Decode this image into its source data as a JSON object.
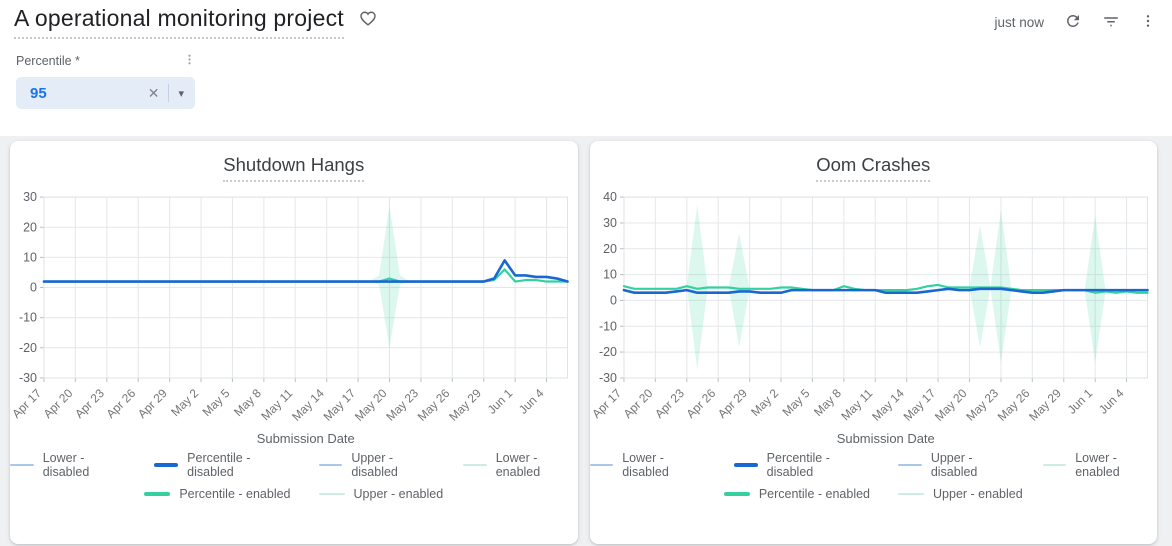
{
  "header": {
    "title": "A operational monitoring project",
    "updated": "just now"
  },
  "icons": {
    "heart": "heart-outline",
    "refresh": "refresh-arrow",
    "filter": "filter-list",
    "kebab_glyph": "⋮",
    "close_glyph": "✕",
    "caret_glyph": "▾"
  },
  "controls": {
    "percentile": {
      "label": "Percentile *",
      "value": "95"
    }
  },
  "chart_data": [
    {
      "type": "line",
      "title": "Shutdown Hangs",
      "xlabel": "Submission Date",
      "ylim": [
        -30,
        30
      ],
      "ytick_step": 10,
      "xtick_step": 3,
      "grid": true,
      "legend_position": "bottom",
      "xticks": [
        "Apr 17",
        "Apr 20",
        "Apr 23",
        "Apr 26",
        "Apr 29",
        "May 2",
        "May 5",
        "May 8",
        "May 11",
        "May 14",
        "May 17",
        "May 20",
        "May 23",
        "May 26",
        "May 29",
        "Jun 1",
        "Jun 4"
      ],
      "x": [
        "Apr 17",
        "Apr 18",
        "Apr 19",
        "Apr 20",
        "Apr 21",
        "Apr 22",
        "Apr 23",
        "Apr 24",
        "Apr 25",
        "Apr 26",
        "Apr 27",
        "Apr 28",
        "Apr 29",
        "Apr 30",
        "May 1",
        "May 2",
        "May 3",
        "May 4",
        "May 5",
        "May 6",
        "May 7",
        "May 8",
        "May 9",
        "May 10",
        "May 11",
        "May 12",
        "May 13",
        "May 14",
        "May 15",
        "May 16",
        "May 17",
        "May 18",
        "May 19",
        "May 20",
        "May 21",
        "May 22",
        "May 23",
        "May 24",
        "May 25",
        "May 26",
        "May 27",
        "May 28",
        "May 29",
        "May 30",
        "May 31",
        "Jun 1",
        "Jun 2",
        "Jun 3",
        "Jun 4",
        "Jun 5",
        "Jun 6"
      ],
      "bands": [
        {
          "name": "Lower/Upper - enabled",
          "fill": "rgba(53,208,160,0.18)",
          "lower": [
            2,
            2,
            2,
            2,
            2,
            2,
            2,
            2,
            2,
            2,
            2,
            2,
            2,
            2,
            2,
            2,
            2,
            2,
            2,
            2,
            2,
            2,
            2,
            2,
            2,
            2,
            2,
            2,
            2,
            2,
            2,
            2,
            1,
            -20,
            1,
            2,
            2,
            2,
            2,
            2,
            2,
            2,
            2,
            2.5,
            6,
            2,
            2.5,
            2.5,
            2,
            2,
            2
          ],
          "upper": [
            2,
            2,
            2,
            2,
            2,
            2,
            2,
            2,
            2,
            2,
            2,
            2,
            2,
            2,
            2,
            2,
            2,
            2,
            2,
            2,
            2,
            2,
            2,
            2,
            2,
            2,
            2,
            2,
            2,
            2,
            2,
            2,
            4,
            27,
            4,
            2,
            2,
            2,
            2,
            2,
            2,
            2,
            2,
            2.5,
            6,
            2,
            2.5,
            2.5,
            2,
            2,
            2
          ]
        }
      ],
      "series": [
        {
          "name": "Percentile - enabled",
          "color": "#35d0a0",
          "width": 2.2,
          "values": [
            2,
            2,
            2,
            2,
            2,
            2,
            2,
            2,
            2,
            2,
            2,
            2,
            2,
            2,
            2,
            2,
            2,
            2,
            2,
            2,
            2,
            2,
            2,
            2,
            2,
            2,
            2,
            2,
            2,
            2,
            2,
            2,
            2,
            3,
            2,
            2,
            2,
            2,
            2,
            2,
            2,
            2,
            2,
            2.5,
            6,
            2,
            2.5,
            2.5,
            2,
            2,
            2
          ]
        },
        {
          "name": "Percentile - disabled",
          "color": "#1967d2",
          "width": 2.6,
          "values": [
            2,
            2,
            2,
            2,
            2,
            2,
            2,
            2,
            2,
            2,
            2,
            2,
            2,
            2,
            2,
            2,
            2,
            2,
            2,
            2,
            2,
            2,
            2,
            2,
            2,
            2,
            2,
            2,
            2,
            2,
            2,
            2,
            2,
            2,
            2,
            2,
            2,
            2,
            2,
            2,
            2,
            2,
            2,
            3,
            9,
            4,
            4,
            3.5,
            3.5,
            3,
            2
          ]
        }
      ],
      "legend": [
        [
          {
            "text": "Lower  - disabled",
            "color": "#a9c7e8",
            "bold": false
          },
          {
            "text": "Percentile  - disabled",
            "color": "#1967d2",
            "bold": true
          },
          {
            "text": "Upper  - disabled",
            "color": "#a9c7e8",
            "bold": false
          },
          {
            "text": "Lower  - enabled",
            "color": "#cdeedf",
            "bold": false
          }
        ],
        [
          {
            "text": "Percentile  - enabled",
            "color": "#35d0a0",
            "bold": true
          },
          {
            "text": "Upper  - enabled",
            "color": "#cdeedf",
            "bold": false
          }
        ]
      ]
    },
    {
      "type": "line",
      "title": "Oom Crashes",
      "xlabel": "Submission Date",
      "ylim": [
        -30,
        40
      ],
      "ytick_step": 10,
      "xtick_step": 3,
      "grid": true,
      "legend_position": "bottom",
      "xticks": [
        "Apr 17",
        "Apr 20",
        "Apr 23",
        "Apr 26",
        "Apr 29",
        "May 2",
        "May 5",
        "May 8",
        "May 11",
        "May 14",
        "May 17",
        "May 20",
        "May 23",
        "May 26",
        "May 29",
        "Jun 1",
        "Jun 4"
      ],
      "x": [
        "Apr 17",
        "Apr 18",
        "Apr 19",
        "Apr 20",
        "Apr 21",
        "Apr 22",
        "Apr 23",
        "Apr 24",
        "Apr 25",
        "Apr 26",
        "Apr 27",
        "Apr 28",
        "Apr 29",
        "Apr 30",
        "May 1",
        "May 2",
        "May 3",
        "May 4",
        "May 5",
        "May 6",
        "May 7",
        "May 8",
        "May 9",
        "May 10",
        "May 11",
        "May 12",
        "May 13",
        "May 14",
        "May 15",
        "May 16",
        "May 17",
        "May 18",
        "May 19",
        "May 20",
        "May 21",
        "May 22",
        "May 23",
        "May 24",
        "May 25",
        "May 26",
        "May 27",
        "May 28",
        "May 29",
        "May 30",
        "May 31",
        "Jun 1",
        "Jun 2",
        "Jun 3",
        "Jun 4",
        "Jun 5",
        "Jun 6"
      ],
      "bands": [
        {
          "name": "Lower/Upper - enabled",
          "fill": "rgba(53,208,160,0.18)",
          "lower": [
            5.5,
            4.5,
            4.5,
            4.5,
            4.5,
            4.5,
            5.5,
            -27,
            5,
            5,
            5,
            -18,
            4.5,
            4.5,
            4.5,
            5,
            5,
            4.5,
            4,
            4,
            4,
            5.5,
            4.5,
            4,
            4,
            4,
            4,
            4,
            4.5,
            5.5,
            6,
            5,
            5,
            5,
            -18,
            5,
            -24,
            4.5,
            4,
            4,
            4,
            4,
            4,
            4,
            4,
            -24,
            3.5,
            3,
            3.5,
            3,
            3
          ],
          "upper": [
            5.5,
            4.5,
            4.5,
            4.5,
            4.5,
            4.5,
            5.5,
            37,
            5,
            5,
            5,
            26,
            4.5,
            4.5,
            4.5,
            5,
            5,
            4.5,
            4,
            4,
            4,
            5.5,
            4.5,
            4,
            4,
            4,
            4,
            4,
            4.5,
            5.5,
            6,
            5,
            5,
            5,
            29,
            5,
            35,
            4.5,
            4,
            4,
            4,
            4,
            4,
            4,
            4,
            33,
            3.5,
            3,
            3.5,
            3,
            3
          ]
        }
      ],
      "series": [
        {
          "name": "Percentile - enabled",
          "color": "#35d0a0",
          "width": 2.2,
          "values": [
            5.5,
            4.5,
            4.5,
            4.5,
            4.5,
            4.5,
            5.5,
            4.5,
            5,
            5,
            5,
            4.5,
            4.5,
            4.5,
            4.5,
            5,
            5,
            4.5,
            4,
            4,
            4,
            5.5,
            4.5,
            4,
            4,
            4,
            4,
            4,
            4.5,
            5.5,
            6,
            5,
            5,
            5,
            5,
            5,
            5,
            4.5,
            4,
            4,
            4,
            4,
            4,
            4,
            4,
            3,
            3.5,
            3,
            3.5,
            3,
            3
          ]
        },
        {
          "name": "Percentile - disabled",
          "color": "#1967d2",
          "width": 2.6,
          "values": [
            4,
            3,
            3,
            3,
            3,
            3.5,
            4,
            3,
            3,
            3,
            3,
            3.5,
            3.5,
            3,
            3,
            3,
            4,
            4,
            4,
            4,
            4,
            4,
            4,
            4,
            4,
            3,
            3,
            3,
            3,
            3.5,
            4,
            4.5,
            4,
            4,
            4.5,
            4.5,
            4.5,
            4,
            3.5,
            3,
            3,
            3.5,
            4,
            4,
            4,
            4,
            4,
            4,
            4,
            4,
            4
          ]
        }
      ],
      "legend": [
        [
          {
            "text": "Lower  - disabled",
            "color": "#a9c7e8",
            "bold": false
          },
          {
            "text": "Percentile  - disabled",
            "color": "#1967d2",
            "bold": true
          },
          {
            "text": "Upper  - disabled",
            "color": "#a9c7e8",
            "bold": false
          },
          {
            "text": "Lower  - enabled",
            "color": "#cdeedf",
            "bold": false
          }
        ],
        [
          {
            "text": "Percentile  - enabled",
            "color": "#35d0a0",
            "bold": true
          },
          {
            "text": "Upper  - enabled",
            "color": "#cdeedf",
            "bold": false
          }
        ]
      ]
    }
  ]
}
